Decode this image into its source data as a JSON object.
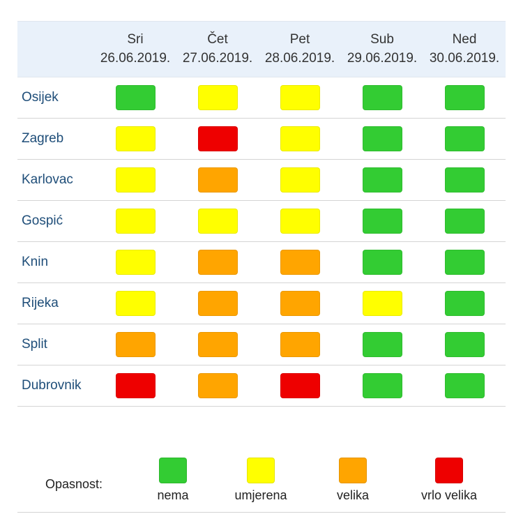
{
  "colors": {
    "nema": "#33cc33",
    "umjerena": "#ffff00",
    "velika": "#ffa500",
    "vrlo_velika": "#ee0000"
  },
  "days": [
    {
      "name": "Sri",
      "date": "26.06.2019."
    },
    {
      "name": "Čet",
      "date": "27.06.2019."
    },
    {
      "name": "Pet",
      "date": "28.06.2019."
    },
    {
      "name": "Sub",
      "date": "29.06.2019."
    },
    {
      "name": "Ned",
      "date": "30.06.2019."
    }
  ],
  "rows": [
    {
      "city": "Osijek",
      "levels": [
        "nema",
        "umjerena",
        "umjerena",
        "nema",
        "nema"
      ]
    },
    {
      "city": "Zagreb",
      "levels": [
        "umjerena",
        "vrlo_velika",
        "umjerena",
        "nema",
        "nema"
      ]
    },
    {
      "city": "Karlovac",
      "levels": [
        "umjerena",
        "velika",
        "umjerena",
        "nema",
        "nema"
      ]
    },
    {
      "city": "Gospić",
      "levels": [
        "umjerena",
        "umjerena",
        "umjerena",
        "nema",
        "nema"
      ]
    },
    {
      "city": "Knin",
      "levels": [
        "umjerena",
        "velika",
        "velika",
        "nema",
        "nema"
      ]
    },
    {
      "city": "Rijeka",
      "levels": [
        "umjerena",
        "velika",
        "velika",
        "umjerena",
        "nema"
      ]
    },
    {
      "city": "Split",
      "levels": [
        "velika",
        "velika",
        "velika",
        "nema",
        "nema"
      ]
    },
    {
      "city": "Dubrovnik",
      "levels": [
        "vrlo_velika",
        "velika",
        "vrlo_velika",
        "nema",
        "nema"
      ]
    }
  ],
  "legend": {
    "title": "Opasnost:",
    "items": [
      {
        "key": "nema",
        "label": "nema"
      },
      {
        "key": "umjerena",
        "label": "umjerena"
      },
      {
        "key": "velika",
        "label": "velika"
      },
      {
        "key": "vrlo_velika",
        "label": "vrlo velika"
      }
    ]
  }
}
